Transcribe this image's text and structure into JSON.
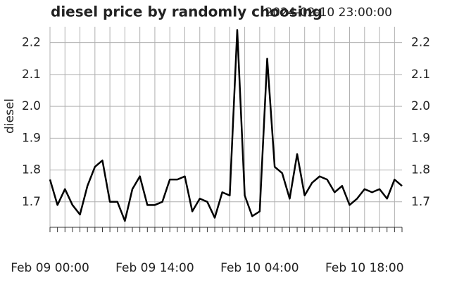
{
  "chart_data": {
    "type": "line",
    "title": "diesel price by randomly choosing",
    "subtitle": "2024-02-10 23:00:00",
    "y_label": "diesel",
    "x": [
      0,
      1,
      2,
      3,
      4,
      5,
      6,
      7,
      8,
      9,
      10,
      11,
      12,
      13,
      14,
      15,
      16,
      17,
      18,
      19,
      20,
      21,
      22,
      23,
      24,
      25,
      26,
      27,
      28,
      29,
      30,
      31,
      32,
      33,
      34,
      35,
      36,
      37,
      38,
      39,
      40,
      41,
      42,
      43,
      44,
      45,
      46,
      47
    ],
    "series": [
      {
        "name": "diesel",
        "color": "#000000",
        "values": [
          1.77,
          1.69,
          1.74,
          1.69,
          1.66,
          1.75,
          1.81,
          1.83,
          1.7,
          1.7,
          1.64,
          1.74,
          1.78,
          1.69,
          1.69,
          1.7,
          1.77,
          1.77,
          1.78,
          1.67,
          1.71,
          1.7,
          1.65,
          1.73,
          1.72,
          2.24,
          1.72,
          1.655,
          1.67,
          2.15,
          1.81,
          1.79,
          1.71,
          1.85,
          1.72,
          1.76,
          1.78,
          1.77,
          1.73,
          1.75,
          1.69,
          1.71,
          1.74,
          1.73,
          1.74,
          1.71,
          1.77,
          1.75
        ]
      }
    ],
    "xlim": [
      0,
      47
    ],
    "xticks": [
      {
        "value": 0,
        "label": "Feb 09 00:00"
      },
      {
        "value": 14,
        "label": "Feb 09 14:00"
      },
      {
        "value": 28,
        "label": "Feb 10 04:00"
      },
      {
        "value": 42,
        "label": "Feb 10 18:00"
      }
    ],
    "xgrid": [
      0,
      2,
      4,
      6,
      8,
      10,
      12,
      14,
      16,
      18,
      20,
      22,
      24,
      26,
      28,
      30,
      32,
      34,
      36,
      38,
      40,
      42,
      44,
      46
    ],
    "ylim": [
      1.62,
      2.25
    ],
    "yticks": [
      1.7,
      1.8,
      1.9,
      {
        "value": 2.0,
        "label": "2.0"
      },
      2.1,
      2.2
    ],
    "grid": true
  }
}
